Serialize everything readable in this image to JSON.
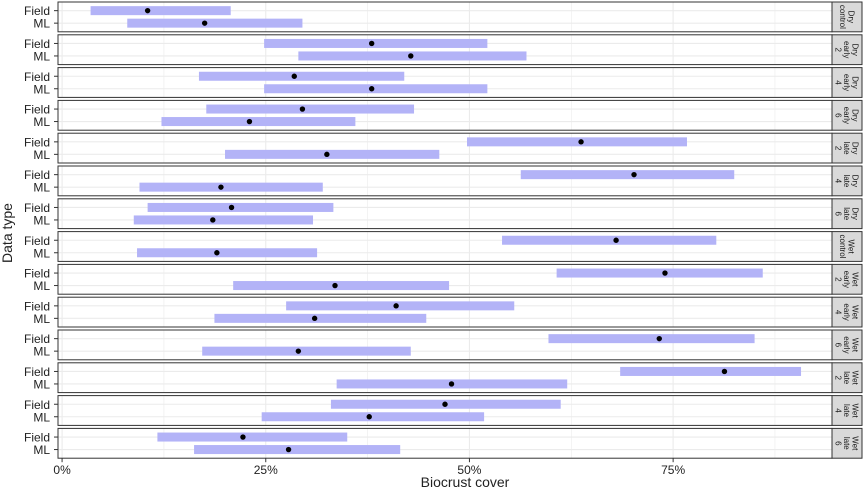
{
  "chart_data": {
    "type": "interval",
    "xlabel": "Biocrust cover",
    "ylabel": "Data type",
    "xlim": [
      -0.005,
      0.945
    ],
    "x_ticks": [
      0,
      0.25,
      0.5,
      0.75
    ],
    "x_tick_labels": [
      "0%",
      "25%",
      "50%",
      "75%"
    ],
    "categories": [
      "Field",
      "ML"
    ],
    "grid": true,
    "colors": {
      "interval": "#b3b3f7",
      "point": "#000000",
      "strip_bg": "#d9d9d9",
      "panel_border": "#333333",
      "grid": "#ebebeb"
    },
    "panels": [
      {
        "label": [
          "Dry",
          "control"
        ],
        "rows": [
          {
            "type": "Field",
            "low": 0.035,
            "mean": 0.105,
            "high": 0.207
          },
          {
            "type": "ML",
            "low": 0.08,
            "mean": 0.175,
            "high": 0.295
          }
        ]
      },
      {
        "label": [
          "Dry",
          "early",
          "2"
        ],
        "rows": [
          {
            "type": "Field",
            "low": 0.248,
            "mean": 0.38,
            "high": 0.522
          },
          {
            "type": "ML",
            "low": 0.29,
            "mean": 0.428,
            "high": 0.57
          }
        ]
      },
      {
        "label": [
          "Dry",
          "early",
          "4"
        ],
        "rows": [
          {
            "type": "Field",
            "low": 0.168,
            "mean": 0.285,
            "high": 0.42
          },
          {
            "type": "ML",
            "low": 0.248,
            "mean": 0.38,
            "high": 0.522
          }
        ]
      },
      {
        "label": [
          "Dry",
          "early",
          "6"
        ],
        "rows": [
          {
            "type": "Field",
            "low": 0.177,
            "mean": 0.295,
            "high": 0.432
          },
          {
            "type": "ML",
            "low": 0.122,
            "mean": 0.23,
            "high": 0.36
          }
        ]
      },
      {
        "label": [
          "Dry",
          "late",
          "2"
        ],
        "rows": [
          {
            "type": "Field",
            "low": 0.497,
            "mean": 0.637,
            "high": 0.767
          },
          {
            "type": "ML",
            "low": 0.2,
            "mean": 0.325,
            "high": 0.463
          }
        ]
      },
      {
        "label": [
          "Dry",
          "late",
          "4"
        ],
        "rows": [
          {
            "type": "Field",
            "low": 0.563,
            "mean": 0.702,
            "high": 0.825
          },
          {
            "type": "ML",
            "low": 0.095,
            "mean": 0.195,
            "high": 0.32
          }
        ]
      },
      {
        "label": [
          "Dry",
          "late",
          "6"
        ],
        "rows": [
          {
            "type": "Field",
            "low": 0.105,
            "mean": 0.208,
            "high": 0.333
          },
          {
            "type": "ML",
            "low": 0.088,
            "mean": 0.185,
            "high": 0.308
          }
        ]
      },
      {
        "label": [
          "Wet",
          "control"
        ],
        "rows": [
          {
            "type": "Field",
            "low": 0.54,
            "mean": 0.68,
            "high": 0.803
          },
          {
            "type": "ML",
            "low": 0.092,
            "mean": 0.19,
            "high": 0.313
          }
        ]
      },
      {
        "label": [
          "Wet",
          "early",
          "2"
        ],
        "rows": [
          {
            "type": "Field",
            "low": 0.607,
            "mean": 0.74,
            "high": 0.86
          },
          {
            "type": "ML",
            "low": 0.21,
            "mean": 0.335,
            "high": 0.475
          }
        ]
      },
      {
        "label": [
          "Wet",
          "early",
          "4"
        ],
        "rows": [
          {
            "type": "Field",
            "low": 0.275,
            "mean": 0.41,
            "high": 0.555
          },
          {
            "type": "ML",
            "low": 0.187,
            "mean": 0.31,
            "high": 0.447
          }
        ]
      },
      {
        "label": [
          "Wet",
          "early",
          "6"
        ],
        "rows": [
          {
            "type": "Field",
            "low": 0.597,
            "mean": 0.733,
            "high": 0.85
          },
          {
            "type": "ML",
            "low": 0.172,
            "mean": 0.29,
            "high": 0.428
          }
        ]
      },
      {
        "label": [
          "Wet",
          "late",
          "2"
        ],
        "rows": [
          {
            "type": "Field",
            "low": 0.685,
            "mean": 0.813,
            "high": 0.907
          },
          {
            "type": "ML",
            "low": 0.337,
            "mean": 0.478,
            "high": 0.62
          }
        ]
      },
      {
        "label": [
          "Wet",
          "late",
          "4"
        ],
        "rows": [
          {
            "type": "Field",
            "low": 0.33,
            "mean": 0.47,
            "high": 0.612
          },
          {
            "type": "ML",
            "low": 0.245,
            "mean": 0.377,
            "high": 0.518
          }
        ]
      },
      {
        "label": [
          "Wet",
          "late",
          "6"
        ],
        "rows": [
          {
            "type": "Field",
            "low": 0.117,
            "mean": 0.222,
            "high": 0.35
          },
          {
            "type": "ML",
            "low": 0.162,
            "mean": 0.278,
            "high": 0.415
          }
        ]
      }
    ]
  }
}
